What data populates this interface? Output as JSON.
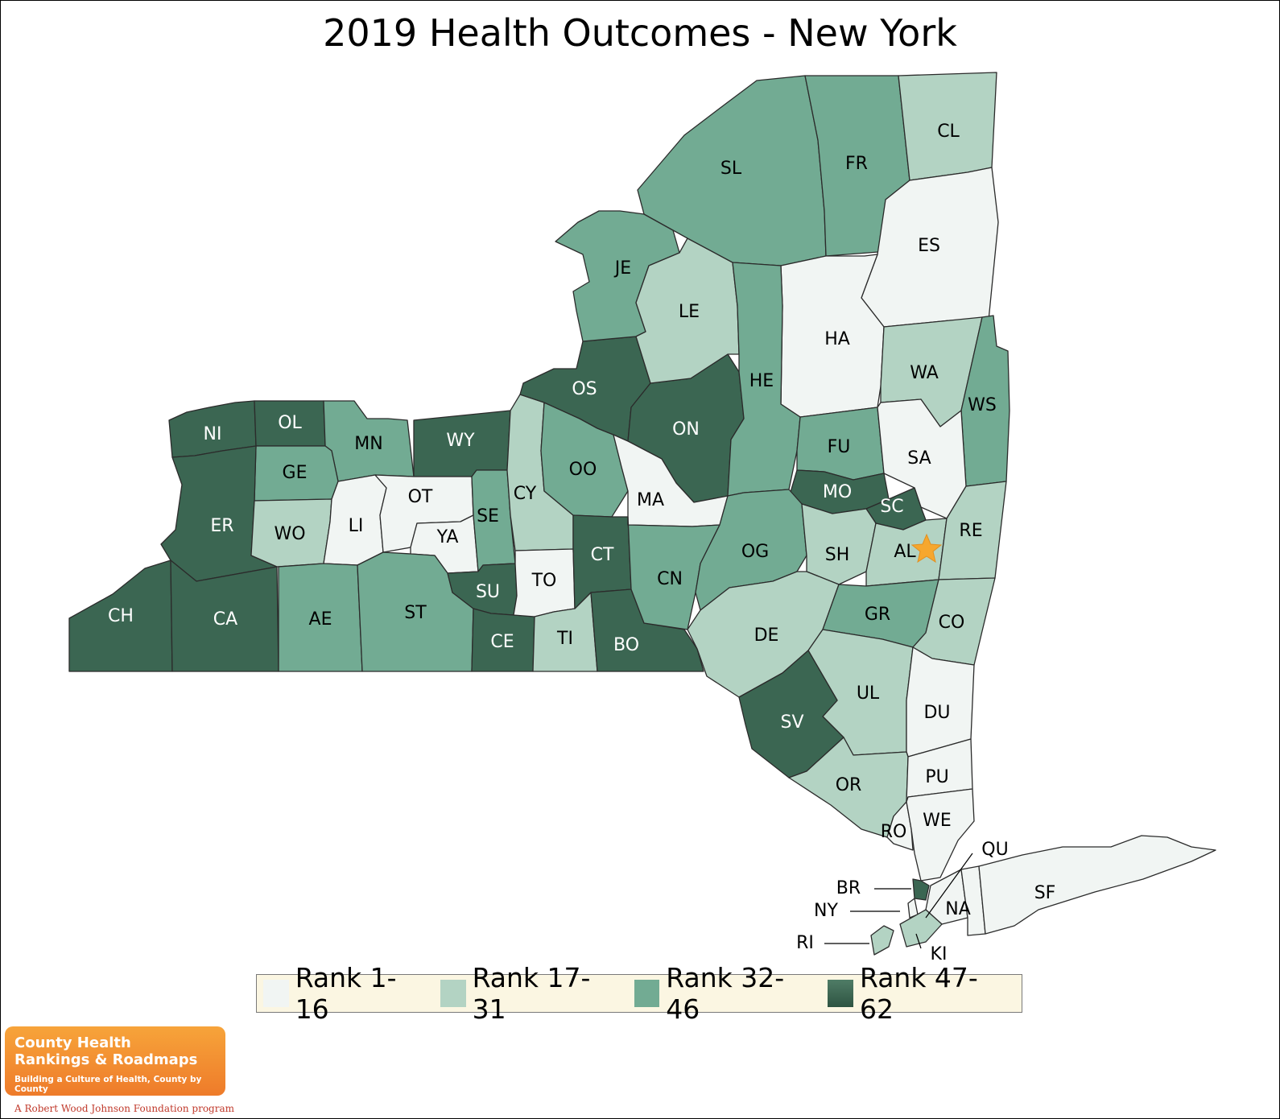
{
  "title": "2019 Health Outcomes - New York",
  "colors": {
    "rank_1_16": "#f1f5f3",
    "rank_17_31": "#b3d3c3",
    "rank_32_46": "#72ab93",
    "rank_47_62": "#3b6652"
  },
  "legend": [
    {
      "label": "Rank 1-16",
      "color": "#f1f5f3"
    },
    {
      "label": "Rank 17-31",
      "color": "#b3d3c3"
    },
    {
      "label": "Rank 32-46",
      "color": "#72ab93"
    },
    {
      "label": "Rank 47-62",
      "color": "#3b6652"
    }
  ],
  "counties": {
    "NI": {
      "label": "NI",
      "rank_group": "Rank 47-62"
    },
    "OL": {
      "label": "OL",
      "rank_group": "Rank 47-62"
    },
    "MN": {
      "label": "MN",
      "rank_group": "Rank 32-46"
    },
    "WY": {
      "label": "WY",
      "rank_group": "Rank 47-62"
    },
    "GE": {
      "label": "GE",
      "rank_group": "Rank 32-46"
    },
    "ER": {
      "label": "ER",
      "rank_group": "Rank 47-62"
    },
    "WO": {
      "label": "WO",
      "rank_group": "Rank 17-31"
    },
    "LI": {
      "label": "LI",
      "rank_group": "Rank 1-16"
    },
    "OT": {
      "label": "OT",
      "rank_group": "Rank 1-16"
    },
    "YA": {
      "label": "YA",
      "rank_group": "Rank 1-16"
    },
    "SE": {
      "label": "SE",
      "rank_group": "Rank 32-46"
    },
    "CY": {
      "label": "CY",
      "rank_group": "Rank 17-31"
    },
    "OO": {
      "label": "OO",
      "rank_group": "Rank 32-46"
    },
    "CH": {
      "label": "CH",
      "rank_group": "Rank 47-62"
    },
    "CA": {
      "label": "CA",
      "rank_group": "Rank 47-62"
    },
    "AE": {
      "label": "AE",
      "rank_group": "Rank 32-46"
    },
    "ST": {
      "label": "ST",
      "rank_group": "Rank 32-46"
    },
    "SU": {
      "label": "SU",
      "rank_group": "Rank 47-62"
    },
    "CE": {
      "label": "CE",
      "rank_group": "Rank 47-62"
    },
    "TO": {
      "label": "TO",
      "rank_group": "Rank 1-16"
    },
    "TI": {
      "label": "TI",
      "rank_group": "Rank 17-31"
    },
    "CT": {
      "label": "CT",
      "rank_group": "Rank 47-62"
    },
    "BO": {
      "label": "BO",
      "rank_group": "Rank 47-62"
    },
    "OS": {
      "label": "OS",
      "rank_group": "Rank 47-62"
    },
    "ON": {
      "label": "ON",
      "rank_group": "Rank 47-62"
    },
    "MA": {
      "label": "MA",
      "rank_group": "Rank 1-16"
    },
    "CN": {
      "label": "CN",
      "rank_group": "Rank 32-46"
    },
    "JE": {
      "label": "JE",
      "rank_group": "Rank 32-46"
    },
    "LE": {
      "label": "LE",
      "rank_group": "Rank 17-31"
    },
    "SL": {
      "label": "SL",
      "rank_group": "Rank 32-46"
    },
    "FR": {
      "label": "FR",
      "rank_group": "Rank 32-46"
    },
    "CL": {
      "label": "CL",
      "rank_group": "Rank 17-31"
    },
    "ES": {
      "label": "ES",
      "rank_group": "Rank 1-16"
    },
    "HA": {
      "label": "HA",
      "rank_group": "Rank 1-16"
    },
    "HE": {
      "label": "HE",
      "rank_group": "Rank 32-46"
    },
    "WA": {
      "label": "WA",
      "rank_group": "Rank 17-31"
    },
    "WS": {
      "label": "WS",
      "rank_group": "Rank 32-46"
    },
    "FU": {
      "label": "FU",
      "rank_group": "Rank 32-46"
    },
    "SA": {
      "label": "SA",
      "rank_group": "Rank 1-16"
    },
    "MO": {
      "label": "MO",
      "rank_group": "Rank 47-62"
    },
    "SC": {
      "label": "SC",
      "rank_group": "Rank 47-62"
    },
    "OG": {
      "label": "OG",
      "rank_group": "Rank 32-46"
    },
    "SH": {
      "label": "SH",
      "rank_group": "Rank 17-31"
    },
    "AL": {
      "label": "AL",
      "rank_group": "Rank 17-31"
    },
    "RE": {
      "label": "RE",
      "rank_group": "Rank 17-31"
    },
    "DE": {
      "label": "DE",
      "rank_group": "Rank 17-31"
    },
    "GR": {
      "label": "GR",
      "rank_group": "Rank 32-46"
    },
    "CO": {
      "label": "CO",
      "rank_group": "Rank 17-31"
    },
    "UL": {
      "label": "UL",
      "rank_group": "Rank 17-31"
    },
    "SV": {
      "label": "SV",
      "rank_group": "Rank 47-62"
    },
    "DU": {
      "label": "DU",
      "rank_group": "Rank 1-16"
    },
    "OR": {
      "label": "OR",
      "rank_group": "Rank 17-31"
    },
    "PU": {
      "label": "PU",
      "rank_group": "Rank 1-16"
    },
    "RO": {
      "label": "RO",
      "rank_group": "Rank 1-16"
    },
    "WE": {
      "label": "WE",
      "rank_group": "Rank 1-16"
    },
    "QU": {
      "label": "QU",
      "rank_group": "Rank 1-16"
    },
    "BR": {
      "label": "BR",
      "rank_group": "Rank 47-62"
    },
    "NY": {
      "label": "NY",
      "rank_group": "Rank 1-16"
    },
    "NA": {
      "label": "NA",
      "rank_group": "Rank 1-16"
    },
    "RI": {
      "label": "RI",
      "rank_group": "Rank 17-31"
    },
    "KI": {
      "label": "KI",
      "rank_group": "Rank 17-31"
    },
    "SF": {
      "label": "SF",
      "rank_group": "Rank 1-16"
    }
  },
  "capital_marker": {
    "icon": "star-icon",
    "color": "#f6a72e"
  },
  "logo": {
    "line1": "County Health",
    "line2": "Rankings & Roadmaps",
    "tagline": "Building a Culture of Health, County by County",
    "sponsor": "A Robert Wood Johnson Foundation program"
  }
}
